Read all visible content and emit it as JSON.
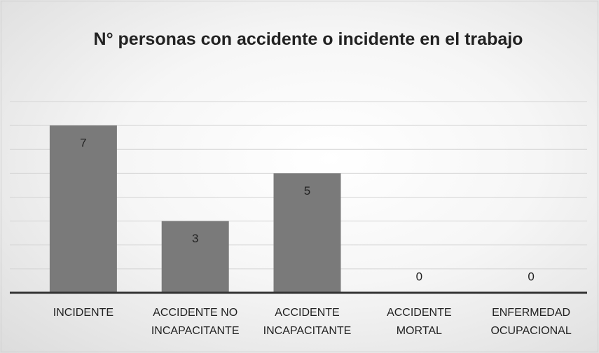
{
  "chart_data": {
    "type": "bar",
    "title": "N° personas con accidente o incidente en el trabajo",
    "categories": [
      "INCIDENTE",
      "ACCIDENTE NO INCAPACITANTE",
      "ACCIDENTE INCAPACITANTE",
      "ACCIDENTE MORTAL",
      "ENFERMEDAD OCUPACIONAL"
    ],
    "values": [
      7,
      3,
      5,
      0,
      0
    ],
    "color": "#7a7a7a",
    "ylim": [
      0,
      8
    ],
    "yticks": [
      0,
      1,
      2,
      3,
      4,
      5,
      6,
      7,
      8
    ],
    "grid": true
  }
}
